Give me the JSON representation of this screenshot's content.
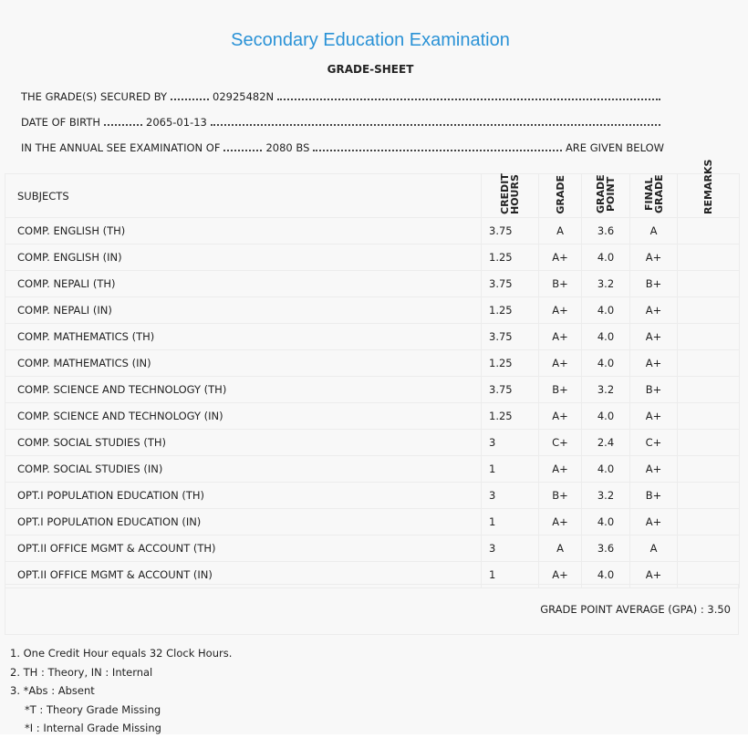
{
  "header": {
    "title": "Secondary Education Examination",
    "subtitle": "GRADE-SHEET"
  },
  "info": [
    {
      "label": "THE GRADE(S) SECURED BY",
      "value": "02925482N"
    },
    {
      "label": "DATE OF BIRTH",
      "value": "2065-01-13"
    },
    {
      "label": "IN THE ANNUAL SEE EXAMINATION OF",
      "value": "2080 BS",
      "suffix": "ARE GIVEN BELOW"
    }
  ],
  "table": {
    "columns": [
      "SUBJECTS",
      "CREDIT HOURS",
      "GRADE",
      "GRADE POINT",
      "FINAL GRADE",
      "REMARKS"
    ],
    "rows": [
      [
        "COMP. ENGLISH (TH)",
        "3.75",
        "A",
        "3.6",
        "A"
      ],
      [
        "COMP. ENGLISH (IN)",
        "1.25",
        "A+",
        "4.0",
        "A+"
      ],
      [
        "COMP. NEPALI (TH)",
        "3.75",
        "B+",
        "3.2",
        "B+"
      ],
      [
        "COMP. NEPALI (IN)",
        "1.25",
        "A+",
        "4.0",
        "A+"
      ],
      [
        "COMP. MATHEMATICS (TH)",
        "3.75",
        "A+",
        "4.0",
        "A+"
      ],
      [
        "COMP. MATHEMATICS (IN)",
        "1.25",
        "A+",
        "4.0",
        "A+"
      ],
      [
        "COMP. SCIENCE AND TECHNOLOGY (TH)",
        "3.75",
        "B+",
        "3.2",
        "B+"
      ],
      [
        "COMP. SCIENCE AND TECHNOLOGY (IN)",
        "1.25",
        "A+",
        "4.0",
        "A+"
      ],
      [
        "COMP. SOCIAL STUDIES (TH)",
        "3",
        "C+",
        "2.4",
        "C+"
      ],
      [
        "COMP. SOCIAL STUDIES (IN)",
        "1",
        "A+",
        "4.0",
        "A+"
      ],
      [
        "OPT.I POPULATION EDUCATION (TH)",
        "3",
        "B+",
        "3.2",
        "B+"
      ],
      [
        "OPT.I POPULATION EDUCATION (IN)",
        "1",
        "A+",
        "4.0",
        "A+"
      ],
      [
        "OPT.II OFFICE MGMT & ACCOUNT (TH)",
        "3",
        "A",
        "3.6",
        "A"
      ],
      [
        "OPT.II OFFICE MGMT & ACCOUNT (IN)",
        "1",
        "A+",
        "4.0",
        "A+"
      ]
    ]
  },
  "gpa": {
    "label": "GRADE POINT AVERAGE (GPA) :",
    "value": "3.50"
  },
  "notes": [
    "1. One Credit Hour equals 32 Clock Hours.",
    "2. TH : Theory, IN : Internal",
    "3. *Abs : Absent",
    "*T : Theory Grade Missing",
    "*I : Internal Grade Missing"
  ]
}
